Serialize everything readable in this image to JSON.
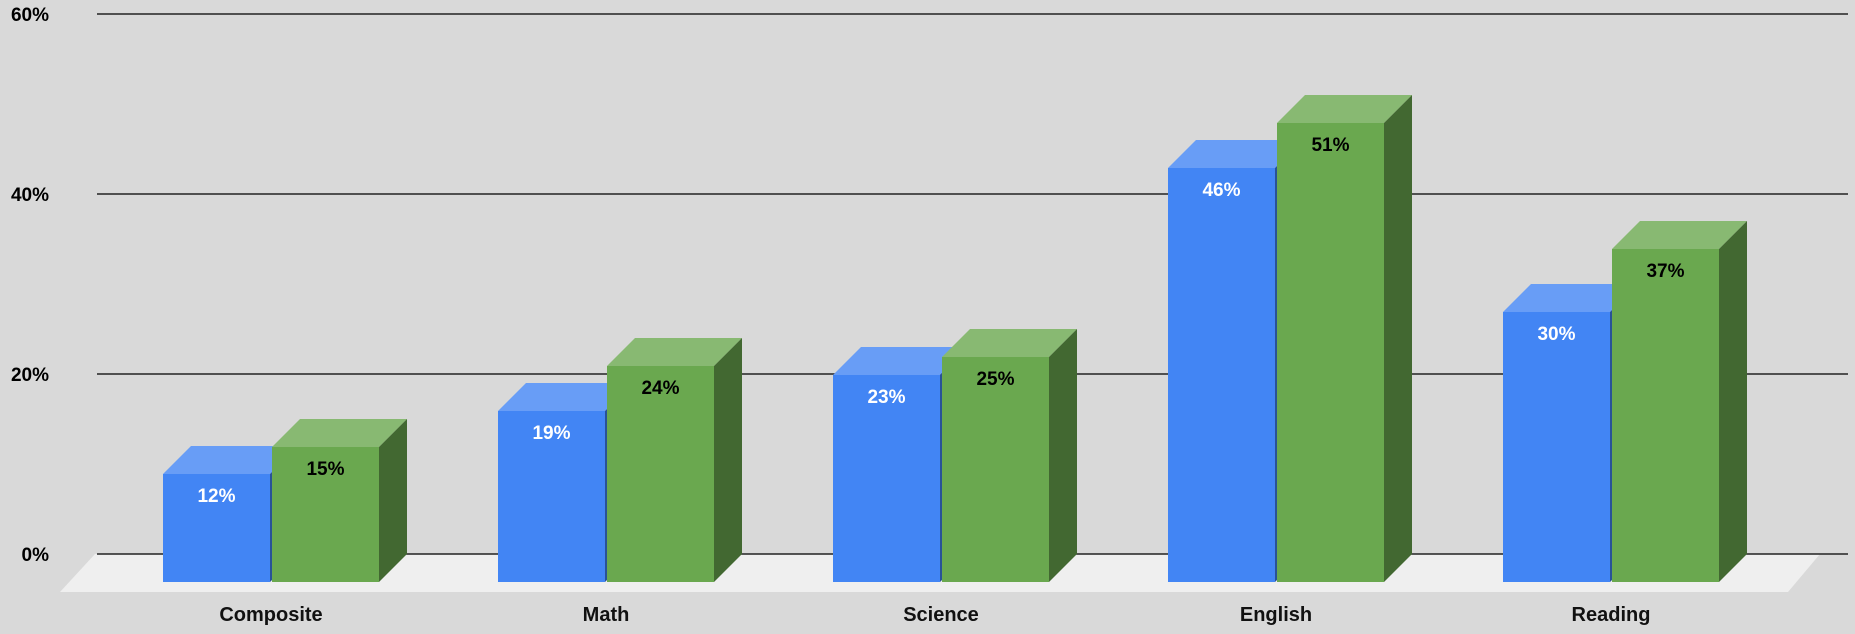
{
  "chart_data": {
    "type": "bar",
    "title": "",
    "xlabel": "",
    "ylabel": "",
    "categories": [
      "Composite",
      "Math",
      "Science",
      "English",
      "Reading"
    ],
    "series": [
      {
        "values": [
          12,
          19,
          23,
          46,
          30
        ],
        "value_labels": [
          "12%",
          "19%",
          "23%",
          "46%",
          "30%"
        ],
        "color": "#4285f4",
        "label_color": "#ffffff"
      },
      {
        "values": [
          15,
          24,
          25,
          51,
          37
        ],
        "value_labels": [
          "15%",
          "24%",
          "25%",
          "51%",
          "37%"
        ],
        "color": "#6aa84f",
        "label_color": "#000000"
      }
    ],
    "ylim": [
      0,
      60
    ],
    "yticks": [
      0,
      20,
      40,
      60
    ],
    "ytick_labels": [
      "0%",
      "20%",
      "40%",
      "60%"
    ],
    "grid": true,
    "legend": "none",
    "style": "3d"
  }
}
